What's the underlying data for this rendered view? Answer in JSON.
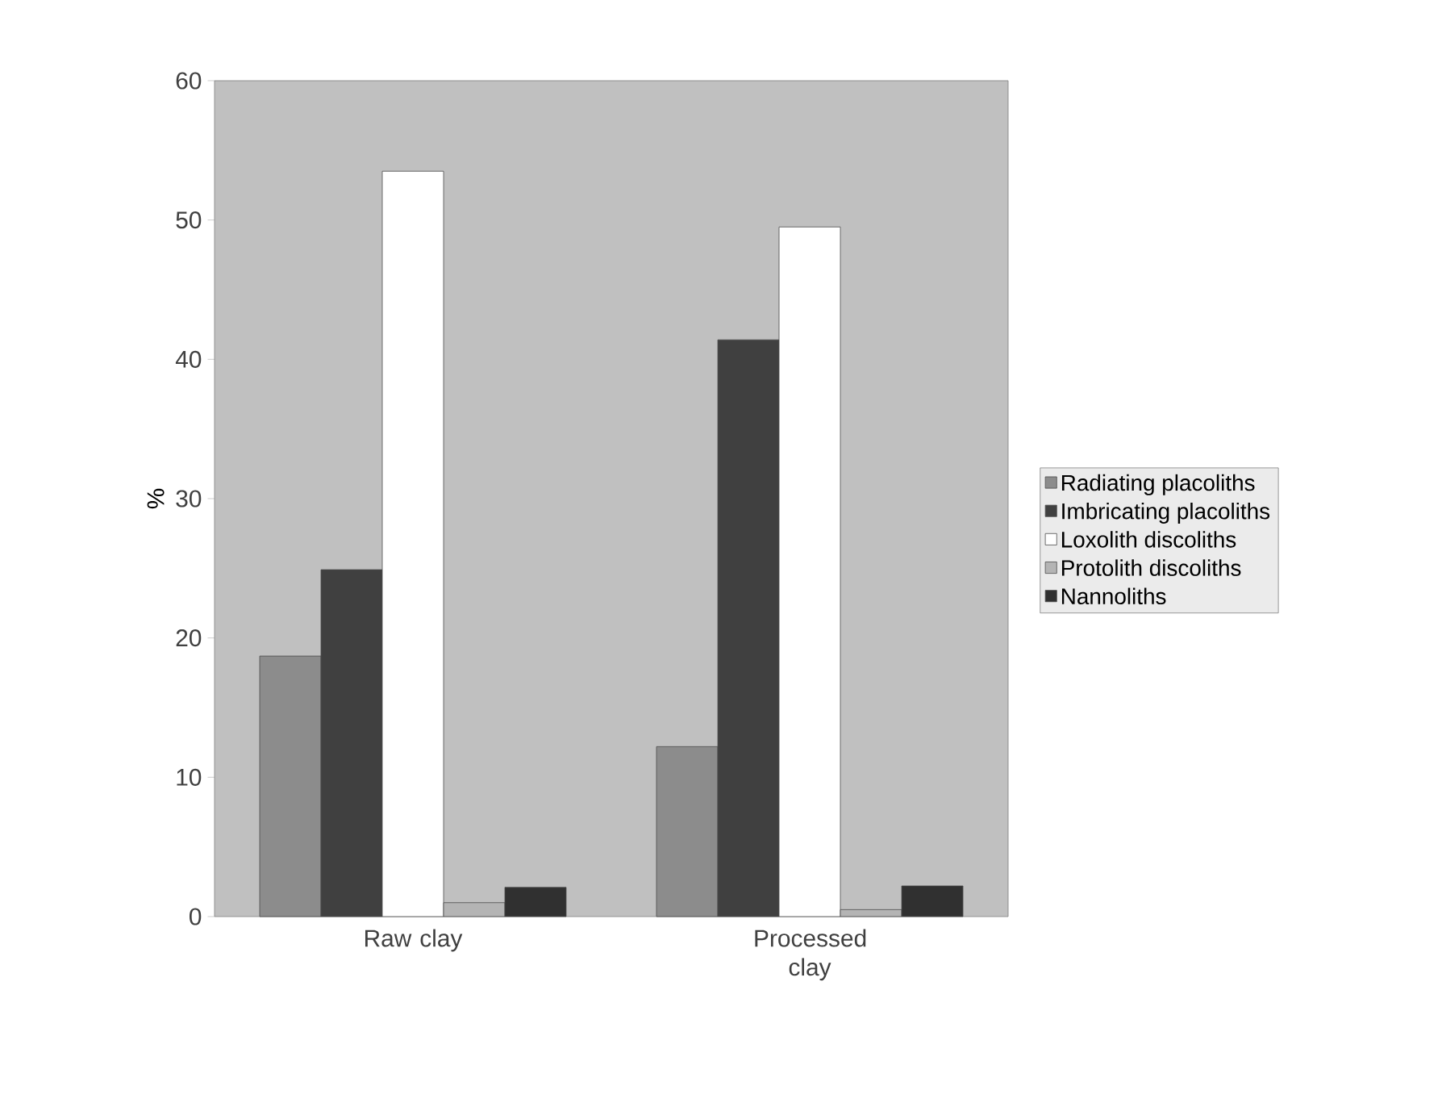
{
  "chart_data": {
    "type": "bar",
    "ylabel": "%",
    "categories": [
      "Raw clay",
      "Processed clay"
    ],
    "series": [
      {
        "name": "Radiating placoliths",
        "color": "#8c8c8c",
        "values": [
          18.7,
          12.2
        ]
      },
      {
        "name": "Imbricating placoliths",
        "color": "#404040",
        "values": [
          24.9,
          41.4
        ]
      },
      {
        "name": "Loxolith discoliths",
        "color": "#ffffff",
        "values": [
          53.5,
          49.5
        ]
      },
      {
        "name": "Protolith discoliths",
        "color": "#b4b4b4",
        "values": [
          1.0,
          0.5
        ]
      },
      {
        "name": "Nannoliths",
        "color": "#303030",
        "values": [
          2.1,
          2.2
        ]
      }
    ],
    "ylim": [
      0,
      60
    ],
    "yticks": [
      0,
      10,
      20,
      30,
      40,
      50,
      60
    ],
    "grid": false,
    "legend": "right"
  }
}
